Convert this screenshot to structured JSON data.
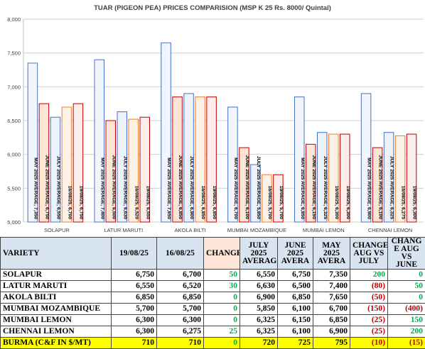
{
  "chart_data": {
    "type": "bar",
    "title": "TUAR (PIGEON PEA) PRICES COMPARISION (MSP K 25 Rs. 8000/ Quintal)",
    "ylim": [
      5000,
      8000
    ],
    "yticks": [
      5000,
      5500,
      6000,
      6500,
      7000,
      7500,
      8000
    ],
    "ytick_labels": [
      "5,000",
      "5,500",
      "6,000",
      "6,500",
      "7,000",
      "7,500",
      "8,000"
    ],
    "grid": true,
    "categories": [
      "SOLAPUR",
      "LATUR MARUTI",
      "AKOLA BILTI",
      "MUMBAI MOZAMBIQUE",
      "MUMBAI LEMON",
      "CHENNAI LEMON"
    ],
    "series_colors": [
      "#4472c4",
      "#c00000",
      "#4472c4",
      "#ed7d31",
      "#c00000",
      "#7f6fb0"
    ],
    "series_fills": [
      "#f2f5fb",
      "#fbe5d6",
      "#edf2fa",
      "#fef2e6",
      "#fcecea",
      "#ece8f4"
    ],
    "groups": [
      {
        "values": [
          7350,
          6750,
          6550,
          6700,
          6750
        ],
        "labels": [
          "MAY 2025 AVERAGE, 7,350",
          "JUNE 2025 AVERAGE, 6,750",
          "JULY 2025 AVERAGE, 6,550",
          "16/08/25, 6,700",
          "19/08/25, 6,750"
        ]
      },
      {
        "values": [
          7400,
          6500,
          6630,
          6520,
          6550
        ],
        "labels": [
          "MAY 2025 AVERAGE, 7,400",
          "JUNE 2025 AVERAGE, 6,500",
          "JULY 2025 AVERAGE, 6,630",
          "16/08/25, 6,520",
          "19/08/25, 6,550"
        ]
      },
      {
        "values": [
          7650,
          6850,
          6900,
          6850,
          6850
        ],
        "labels": [
          "MAY 2025 AVERAGE, 7,650",
          "JUNE 2025 AVERAGE, 6,850",
          "JULY 2025 AVERAGE, 6,900",
          "16/08/25, 6,850",
          "19/08/25, 6,850"
        ]
      },
      {
        "values": [
          6700,
          6100,
          5850,
          5700,
          5700
        ],
        "labels": [
          "MAY 2025 AVERAGE, 6,700",
          "JUNE 2025 AVERAGE, 6,100",
          "JULY 2025 AVERAGE, 5,850",
          "16/08/25, 5,700",
          "19/08/25, 5,700"
        ]
      },
      {
        "values": [
          6850,
          6150,
          6325,
          6300,
          6300
        ],
        "labels": [
          "MAY 2025 AVERAGE, 6,850",
          "JUNE 2025 AVERAGE, 6,150",
          "JULY 2025 AVERAGE, 6,325",
          "16/08/25, 6,300",
          "19/08/25, 6,300"
        ]
      },
      {
        "values": [
          6900,
          6100,
          6325,
          6275,
          6300
        ],
        "labels": [
          "MAY 2025 AVERAGE, 6,900",
          "JUNE 2025 AVERAGE, 6,100",
          "JULY 2025 AVERAGE, 6,325",
          "16/08/25, 6,275",
          "19/08/25, 6,300"
        ]
      }
    ]
  },
  "table": {
    "headers": {
      "variety": "VARIETY",
      "d1": "19/08/25",
      "d2": "16/08/25",
      "change": "CHANGE",
      "july": "JULY 2025 AVERAG",
      "june": "JUNE 2025 AVERA",
      "may": "MAY 2025 AVERA",
      "chg_july": "CHANGE AUG VS JULY",
      "chg_june": "CHANG E AUG VS JUNE"
    },
    "rows": [
      {
        "variety": "SOLAPUR",
        "d1": "6,750",
        "d2": "6,700",
        "change": "50",
        "july": "6,550",
        "june": "6,750",
        "may": "7,350",
        "chg_july": "200",
        "chg_june": "0"
      },
      {
        "variety": "LATUR MARUTI",
        "d1": "6,550",
        "d2": "6,520",
        "change": "30",
        "july": "6,630",
        "june": "6,500",
        "may": "7,400",
        "chg_july": "(80)",
        "chg_june": "50"
      },
      {
        "variety": "AKOLA BILTI",
        "d1": "6,850",
        "d2": "6,850",
        "change": "0",
        "july": "6,900",
        "june": "6,850",
        "may": "7,650",
        "chg_july": "(50)",
        "chg_june": "0"
      },
      {
        "variety": "MUMBAI MOZAMBIQUE",
        "d1": "5,700",
        "d2": "5,700",
        "change": "0",
        "july": "5,850",
        "june": "6,100",
        "may": "6,700",
        "chg_july": "(150)",
        "chg_june": "(400)"
      },
      {
        "variety": "MUMBAI LEMON",
        "d1": "6,300",
        "d2": "6,300",
        "change": "0",
        "july": "6,325",
        "june": "6,150",
        "may": "6,850",
        "chg_july": "(25)",
        "chg_june": "150"
      },
      {
        "variety": "CHENNAI LEMON",
        "d1": "6,300",
        "d2": "6,275",
        "change": "25",
        "july": "6,325",
        "june": "6,100",
        "may": "6,900",
        "chg_july": "(25)",
        "chg_june": "200"
      },
      {
        "variety": "BURMA (C&F IN $/MT)",
        "d1": "710",
        "d2": "710",
        "change": "0",
        "july": "720",
        "june": "725",
        "may": "795",
        "chg_july": "(10)",
        "chg_june": "(15)"
      }
    ]
  }
}
